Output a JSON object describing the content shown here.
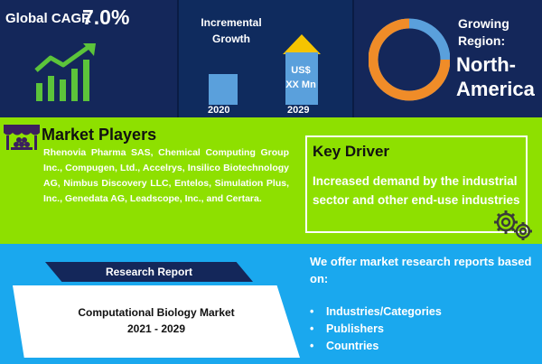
{
  "cagr": {
    "label": "Global CAGR",
    "value": "7.0%"
  },
  "incremental": {
    "title_line1": "Incremental",
    "title_line2": "Growth",
    "bar_2029_line1": "US$",
    "bar_2029_line2": "XX Mn",
    "year_start": "2020",
    "year_end": "2029"
  },
  "region": {
    "label_line1": "Growing",
    "label_line2": "Region:",
    "value_line1": "North-",
    "value_line2": "America"
  },
  "players": {
    "title": "Market Players",
    "text": "Rhenovia Pharma SAS, Chemical Computing Group Inc., Compugen, Ltd., Accelrys, Insilico Biotechnology AG, Nimbus Discovery LLC, Entelos, Simulation Plus, Inc., Genedata AG, Leadscope, Inc., and Certara."
  },
  "driver": {
    "title": "Key Driver",
    "text": "Increased demand by the industrial sector and other end-use industries"
  },
  "report": {
    "ribbon": "Research Report",
    "title_line1": "Computational Biology Market",
    "title_line2": "2021 - 2029"
  },
  "offer": {
    "text": "We offer market research reports based on:",
    "items": [
      "Industries/Categories",
      "Publishers",
      "Countries"
    ],
    "bullet": "•"
  },
  "colors": {
    "navy": "#14275a",
    "green": "#8ee000",
    "blue": "#1aa8ee",
    "accent_bar": "#5aa0dc",
    "arrow": "#f5c400",
    "donut_orange": "#f08c28",
    "donut_blue": "#5aa0dc",
    "growth_green": "#5cc43a"
  }
}
